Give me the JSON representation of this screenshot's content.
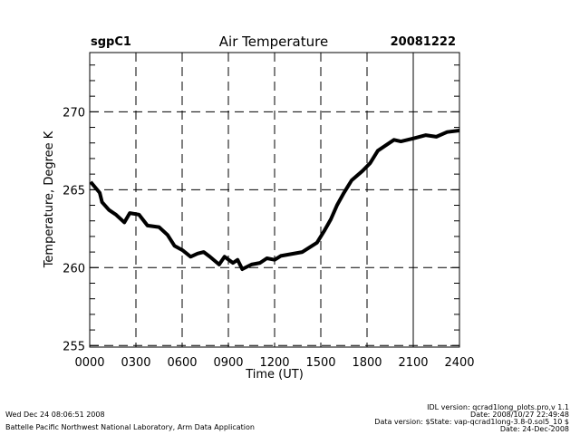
{
  "header": {
    "site": "sgpC1",
    "date": "20081222"
  },
  "footer": {
    "left": [
      "Wed Dec 24 08:06:51 2008",
      "Battelle Pacific Northwest National Laboratory, Arm Data Application"
    ],
    "right": [
      "IDL version: qcrad1long_plots.pro,v 1.1",
      "Date: 2008/10/27 22:49:48",
      "Data version: $State: vap-qcrad1long-3.8-0.sol5_10 $",
      "Date: 24-Dec-2008"
    ]
  },
  "chart_data": {
    "type": "line",
    "title": "Air Temperature",
    "xlabel": "Time (UT)",
    "ylabel": "Temperature, Degree K",
    "xlim": [
      0,
      24
    ],
    "ylim": [
      254.9,
      273.8
    ],
    "x_ticks": [
      0,
      3,
      6,
      9,
      12,
      15,
      18,
      21,
      24
    ],
    "x_tick_labels": [
      "0000",
      "0300",
      "0600",
      "0900",
      "1200",
      "1500",
      "1800",
      "2100",
      "2400"
    ],
    "y_ticks": [
      255,
      260,
      265,
      270
    ],
    "y_tick_labels": [
      "255",
      "260",
      "265",
      "270"
    ],
    "grid": "dashed",
    "series": [
      {
        "name": "Air Temperature",
        "x": [
          0.06,
          0.65,
          0.8,
          1.25,
          1.7,
          2.25,
          2.6,
          3.2,
          3.75,
          4.5,
          5.05,
          5.5,
          6.05,
          6.55,
          7,
          7.4,
          7.8,
          8.4,
          8.75,
          9.3,
          9.6,
          9.9,
          10.5,
          11.05,
          11.5,
          12,
          12.4,
          13.8,
          14.75,
          15.25,
          15.65,
          16.05,
          16.5,
          17,
          17.7,
          18.2,
          18.7,
          19.3,
          19.75,
          20.2,
          21.05,
          21.8,
          22.5,
          23.2,
          24
        ],
        "y": [
          265.5,
          264.8,
          264.2,
          263.7,
          263.4,
          262.9,
          263.5,
          263.4,
          262.7,
          262.6,
          262.1,
          261.4,
          261.1,
          260.7,
          260.9,
          261.0,
          260.7,
          260.2,
          260.7,
          260.3,
          260.5,
          259.9,
          260.2,
          260.3,
          260.6,
          260.5,
          260.75,
          261.0,
          261.6,
          262.4,
          263.1,
          264.0,
          264.8,
          265.6,
          266.2,
          266.7,
          267.5,
          267.9,
          268.2,
          268.1,
          268.3,
          268.5,
          268.4,
          268.7,
          268.8
        ]
      }
    ]
  }
}
